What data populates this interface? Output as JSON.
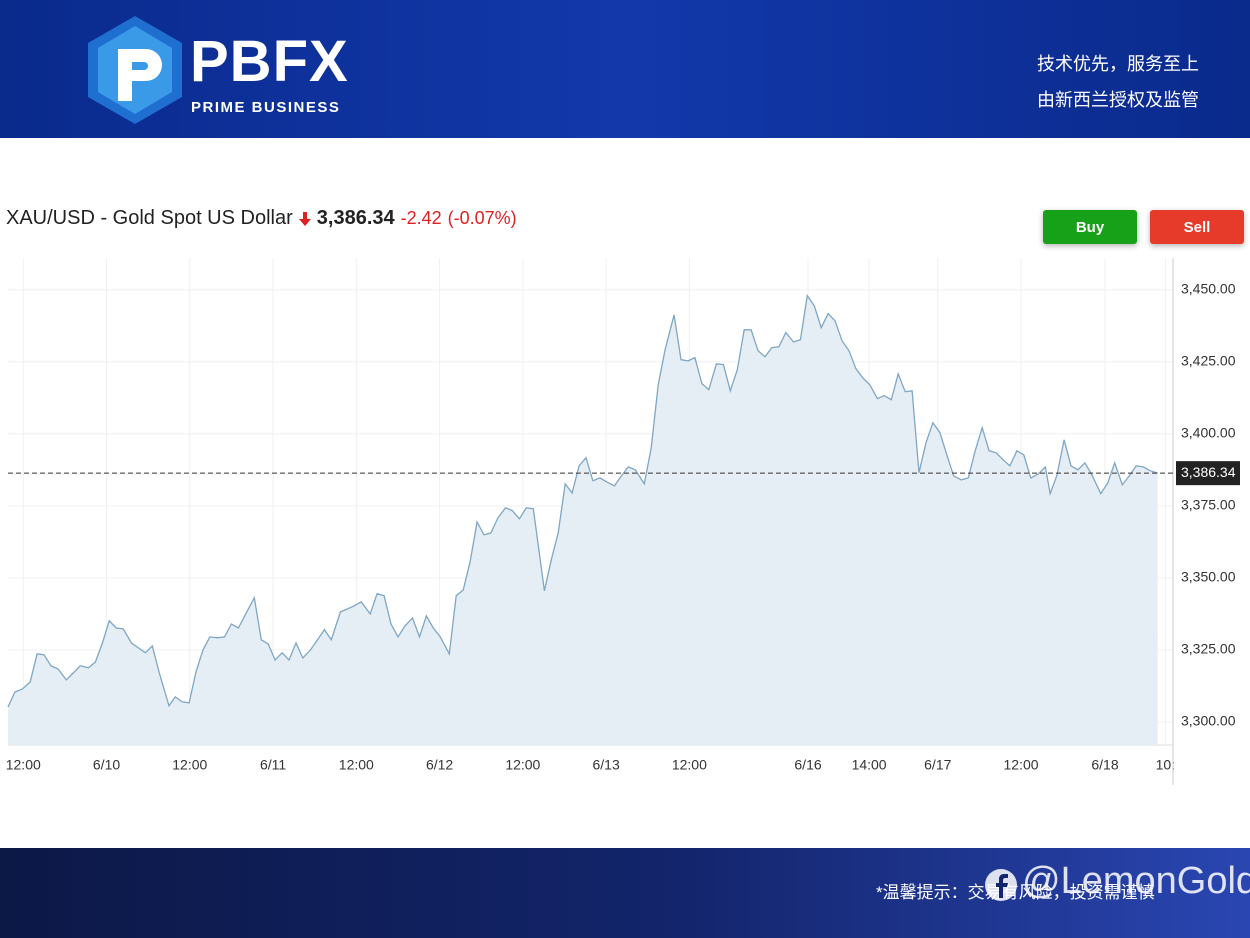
{
  "header": {
    "logo": "PBFX",
    "logo_sub": "PRIME BUSINESS",
    "slogan": "技术优先，服务至上",
    "regulation": "由新西兰授权及监管"
  },
  "chart_data": {
    "type": "area",
    "title": "XAU/USD - Gold Spot US Dollar",
    "price": {
      "value": 3386.34,
      "label": "3,386.34"
    },
    "change": -2.42,
    "change_pct": {
      "value": -0.07,
      "label": "(-0.07%)"
    },
    "buttons": [
      "Buy",
      "Sell"
    ],
    "color": "#7fa6c2",
    "fill": "#e6eef5",
    "x": [
      -2.2,
      -1.2,
      -0.1,
      1.0,
      2.0,
      3.0,
      4.0,
      5.0,
      6.2,
      7.2,
      8.2,
      9.4,
      10.4,
      11.4,
      12.4,
      13.4,
      14.4,
      15.6,
      16.6,
      17.6,
      18.6,
      19.6,
      21.0,
      21.9,
      22.9,
      23.9,
      24.9,
      25.9,
      26.9,
      28.0,
      29.0,
      30.0,
      31.0,
      32.0,
      33.3,
      34.3,
      35.3,
      36.3,
      37.3,
      38.3,
      39.3,
      40.3,
      41.4,
      42.4,
      43.4,
      44.4,
      45.7,
      46.7,
      47.7,
      48.7,
      50.0,
      51.0,
      52.0,
      53.0,
      54.0,
      55.0,
      56.1,
      57.1,
      58.1,
      59.1,
      60.1,
      61.4,
      62.4,
      63.4,
      64.4,
      65.4,
      66.4,
      67.4,
      68.4,
      69.5,
      70.5,
      71.5,
      72.5,
      73.5,
      75.1,
      76.1,
      77.1,
      78.1,
      79.1,
      80.1,
      81.1,
      82.1,
      83.1,
      84.1,
      85.2,
      86.2,
      87.2,
      88.2,
      89.5,
      90.5,
      91.5,
      92.5,
      93.8,
      94.8,
      95.8,
      96.8,
      97.8,
      98.8,
      99.9,
      100.9,
      101.9,
      102.9,
      103.9,
      104.9,
      105.9,
      106.9,
      107.9,
      108.9,
      109.9,
      111.0,
      112.0,
      113.0,
      114.0,
      115.0,
      116.0,
      117.0,
      118.0,
      119.0,
      120.0,
      121.0,
      122.0,
      123.1,
      124.1,
      125.1,
      126.1,
      127.1,
      128.1,
      129.1,
      130.1,
      131.1,
      132.1,
      133.1,
      134.1,
      135.2,
      136.2,
      137.2,
      138.2,
      139.2,
      140.2,
      141.2,
      142.2,
      143.2,
      144.2,
      145.2,
      146.3,
      147.3,
      148.0,
      149.0,
      150.0,
      151.0,
      152.0,
      153.0,
      154.0,
      155.3,
      156.3,
      157.3,
      158.4,
      159.4,
      160.4,
      161.4,
      162.4,
      163.5
    ],
    "values": [
      3305.2,
      3310.4,
      3311.5,
      3313.9,
      3323.6,
      3323.3,
      3319.5,
      3318.4,
      3314.6,
      3317.0,
      3319.5,
      3318.8,
      3320.8,
      3327.4,
      3335.1,
      3332.6,
      3332.3,
      3327.4,
      3325.7,
      3324.0,
      3326.4,
      3317.0,
      3305.6,
      3308.7,
      3307.0,
      3306.6,
      3317.4,
      3325.0,
      3329.5,
      3329.2,
      3329.5,
      3334.0,
      3332.6,
      3337.2,
      3343.1,
      3328.5,
      3327.1,
      3321.5,
      3324.0,
      3321.5,
      3327.4,
      3322.2,
      3325.0,
      3328.5,
      3332.0,
      3328.5,
      3338.2,
      3339.2,
      3340.3,
      3341.7,
      3337.5,
      3344.5,
      3343.8,
      3334.0,
      3329.5,
      3333.3,
      3336.1,
      3329.5,
      3336.8,
      3332.6,
      3329.5,
      3323.6,
      3343.8,
      3345.8,
      3355.6,
      3369.4,
      3364.9,
      3365.6,
      3370.8,
      3374.3,
      3373.3,
      3370.5,
      3374.3,
      3374.0,
      3345.5,
      3356.3,
      3365.6,
      3382.6,
      3379.5,
      3388.9,
      3391.7,
      3383.7,
      3384.7,
      3383.3,
      3381.9,
      3385.4,
      3388.5,
      3387.5,
      3382.6,
      3395.1,
      3417.0,
      3429.2,
      3441.3,
      3425.7,
      3425.3,
      3426.4,
      3417.4,
      3415.3,
      3424.3,
      3424.0,
      3414.9,
      3422.2,
      3436.1,
      3436.1,
      3428.8,
      3426.7,
      3429.9,
      3430.2,
      3435.1,
      3431.9,
      3432.6,
      3447.9,
      3444.4,
      3436.8,
      3441.7,
      3439.2,
      3432.3,
      3428.8,
      3422.6,
      3419.4,
      3417.0,
      3412.2,
      3413.2,
      3411.8,
      3420.8,
      3414.6,
      3414.9,
      3386.5,
      3396.9,
      3403.8,
      3400.4,
      3392.7,
      3385.4,
      3384.0,
      3384.7,
      3394.1,
      3402.1,
      3394.1,
      3393.4,
      3391.0,
      3388.9,
      3394.1,
      3392.7,
      3384.7,
      3386.1,
      3388.5,
      3379.2,
      3385.8,
      3397.9,
      3388.9,
      3387.5,
      3389.9,
      3385.8,
      3379.2,
      3383.0,
      3389.9,
      3382.3,
      3385.4,
      3388.9,
      3388.5,
      3387.2,
      3386.34
    ],
    "xlim": [
      -2.2,
      165.7
    ],
    "xticks": [
      {
        "value": 0,
        "label": "12:00"
      },
      {
        "value": 12,
        "label": "6/10"
      },
      {
        "value": 24,
        "label": "12:00"
      },
      {
        "value": 36,
        "label": "6/11"
      },
      {
        "value": 48,
        "label": "12:00"
      },
      {
        "value": 60,
        "label": "6/12"
      },
      {
        "value": 72,
        "label": "12:00"
      },
      {
        "value": 84,
        "label": "6/13"
      },
      {
        "value": 96,
        "label": "12:00"
      },
      {
        "value": 113.1,
        "label": "6/16"
      },
      {
        "value": 121.9,
        "label": "14:00"
      },
      {
        "value": 131.8,
        "label": "6/17"
      },
      {
        "value": 143.8,
        "label": "12:00"
      },
      {
        "value": 155.9,
        "label": "6/18"
      },
      {
        "value": 164.6,
        "label": "10:"
      }
    ],
    "ylim": [
      3292,
      3461
    ],
    "yticks": [
      {
        "value": 3300,
        "label": "3,300.00"
      },
      {
        "value": 3325,
        "label": "3,325.00"
      },
      {
        "value": 3350,
        "label": "3,350.00"
      },
      {
        "value": 3375,
        "label": "3,375.00"
      },
      {
        "value": 3400,
        "label": "3,400.00"
      },
      {
        "value": 3425,
        "label": "3,425.00"
      },
      {
        "value": 3450,
        "label": "3,450.00"
      }
    ],
    "grid": true
  },
  "footer": {
    "notice": "*温馨提示：交易有风险，投资需谨慎",
    "watermark": "@LemonGold"
  }
}
